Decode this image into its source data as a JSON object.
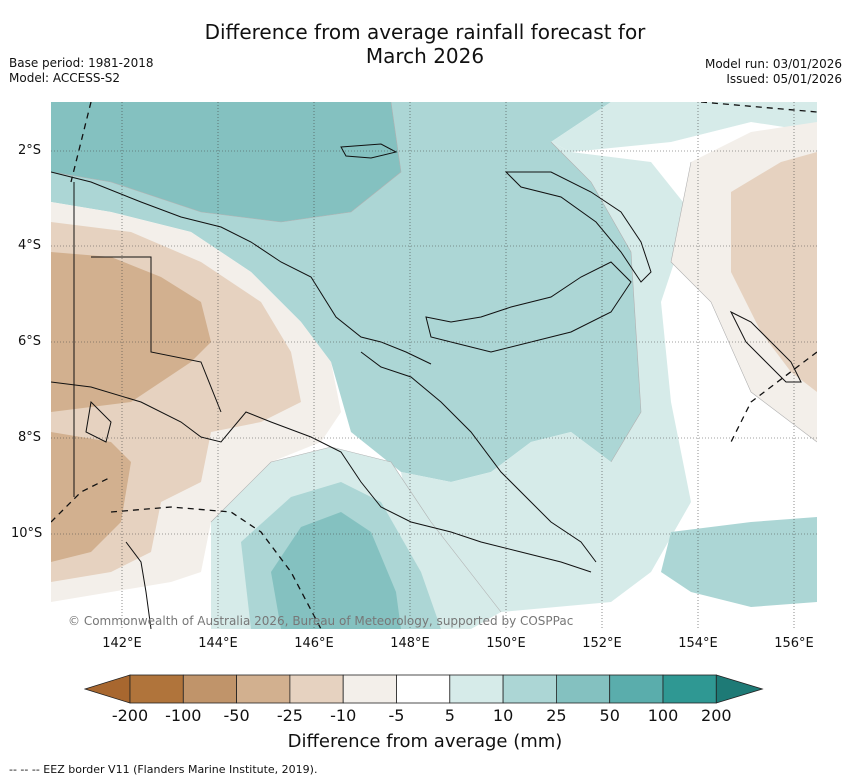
{
  "title": "Difference from average rainfall forecast for\nMarch 2026",
  "meta_left": [
    "Base period: 1981-2018",
    "Model: ACCESS-S2"
  ],
  "meta_right": [
    "Model run: 03/01/2026",
    "Issued: 05/01/2026"
  ],
  "lat_ticks": [
    "2°S",
    "4°S",
    "6°S",
    "8°S",
    "10°S"
  ],
  "lon_ticks": [
    "142°E",
    "144°E",
    "146°E",
    "148°E",
    "150°E",
    "152°E",
    "154°E",
    "156°E"
  ],
  "copyright": "© Commonwealth of Australia 2026, Bureau of Meteorology, supported by COSPPac",
  "colorbar": {
    "labels": [
      "-200",
      "-100",
      "-50",
      "-25",
      "-10",
      "-5",
      "5",
      "10",
      "25",
      "50",
      "100",
      "200"
    ],
    "colors": [
      "#a8672f",
      "#b0743b",
      "#c0946a",
      "#d2b08f",
      "#e6d2c0",
      "#f3efea",
      "#ffffff",
      "#d6ebe9",
      "#acd6d5",
      "#84c1c0",
      "#5aadac",
      "#2f9893",
      "#1e7a76"
    ],
    "title": "Difference from average (mm)"
  },
  "footnote": "--  --  -- EEZ border V11 (Flanders Marine Institute, 2019)."
}
